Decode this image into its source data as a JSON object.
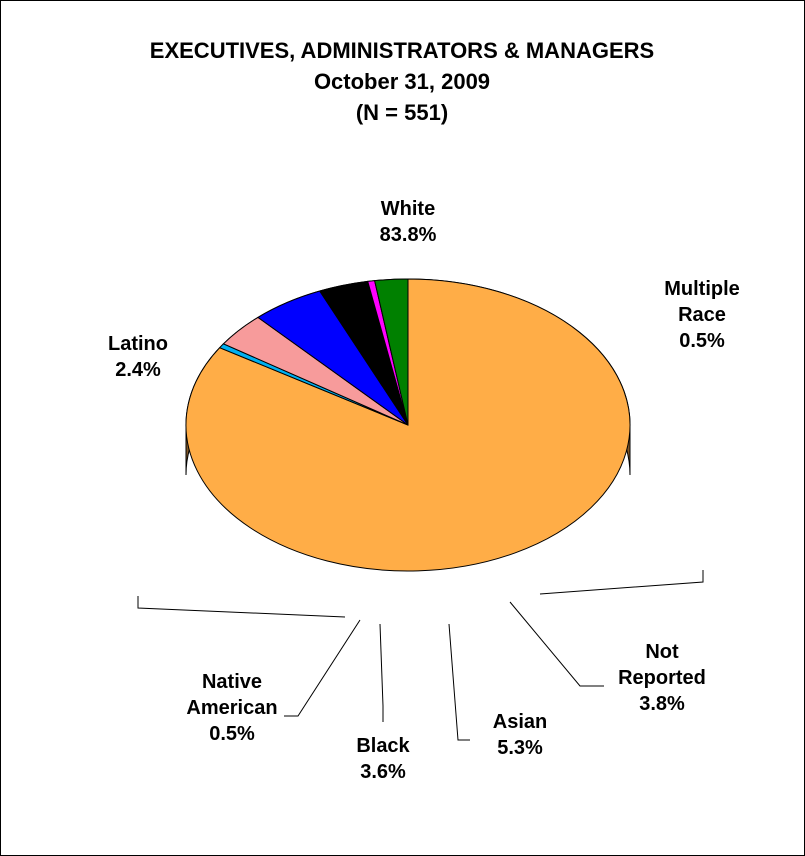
{
  "chart_data": {
    "type": "pie",
    "title": "EXECUTIVES, ADMINISTRATORS & MANAGERS",
    "subtitle_lines": [
      "October 31, 2009",
      "(N = 551)"
    ],
    "three_d": true,
    "legend": "none",
    "slices": [
      {
        "label_lines": [
          "White"
        ],
        "value": 83.8,
        "value_label": "83.8%",
        "color": "#FFAD47",
        "side_color": "#7F5729"
      },
      {
        "label_lines": [
          "Multiple",
          "Race"
        ],
        "value": 0.5,
        "value_label": "0.5%",
        "color": "#00B0F0",
        "side_color": "#00667F"
      },
      {
        "label_lines": [
          "Not",
          "Reported"
        ],
        "value": 3.8,
        "value_label": "3.8%",
        "color": "#F79B9B",
        "side_color": "#7F5050"
      },
      {
        "label_lines": [
          "Asian"
        ],
        "value": 5.3,
        "value_label": "5.3%",
        "color": "#0000FF",
        "side_color": "#000080"
      },
      {
        "label_lines": [
          "Black"
        ],
        "value": 3.6,
        "value_label": "3.6%",
        "color": "#000000",
        "side_color": "#000000"
      },
      {
        "label_lines": [
          "Native",
          "American"
        ],
        "value": 0.5,
        "value_label": "0.5%",
        "color": "#FF00FF",
        "side_color": "#800080"
      },
      {
        "label_lines": [
          "Latino"
        ],
        "value": 2.4,
        "value_label": "2.4%",
        "color": "#008000",
        "side_color": "#004000"
      }
    ]
  }
}
